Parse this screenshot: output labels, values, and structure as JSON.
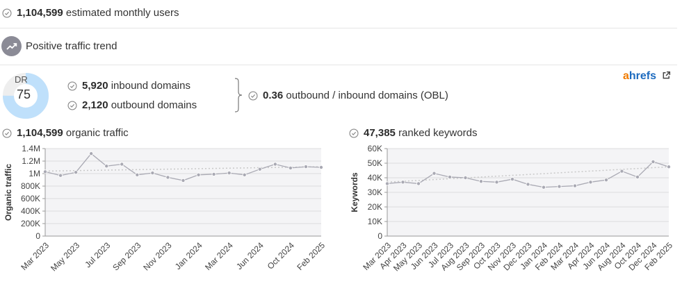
{
  "summary": {
    "monthly_users_value": "1,104,599",
    "monthly_users_label": "estimated monthly users",
    "trend_label": "Positive traffic trend",
    "dr_label": "DR",
    "dr_value": "75",
    "dr_fraction": 0.75,
    "inbound_value": "5,920",
    "inbound_label": "inbound domains",
    "outbound_value": "2,120",
    "outbound_label": "outbound domains",
    "obl_value": "0.36",
    "obl_label": "outbound / inbound domains (OBL)",
    "brand_a": "a",
    "brand_rest": "hrefs",
    "colors": {
      "accent_blue": "#bfe0fb",
      "check_gray": "#888888",
      "line": "#a9a9b3",
      "trend": "#d0d0d0",
      "ahrefs_orange": "#f07b00",
      "ahrefs_blue": "#1d6bbf"
    }
  },
  "traffic_header": {
    "value": "1,104,599",
    "label": "organic traffic"
  },
  "keywords_header": {
    "value": "47,385",
    "label": "ranked keywords"
  },
  "chart_data": [
    {
      "type": "line",
      "ylabel": "Organic traffic",
      "ylim": [
        0,
        1400000
      ],
      "yticks": [
        0,
        200000,
        400000,
        600000,
        800000,
        1000000,
        1200000,
        1400000
      ],
      "ytick_labels": [
        "0",
        "200K",
        "400K",
        "600K",
        "800K",
        "1M",
        "1.2M",
        "1.4M"
      ],
      "x_labels": [
        "Mar 2023",
        "May 2023",
        "Jul 2023",
        "Sep 2023",
        "Nov 2023",
        "Jan 2024",
        "Mar 2024",
        "Jun 2024",
        "Oct 2024",
        "Feb 2025"
      ],
      "values": [
        1030000,
        970000,
        1020000,
        1320000,
        1120000,
        1150000,
        980000,
        1010000,
        940000,
        890000,
        980000,
        990000,
        1010000,
        980000,
        1070000,
        1150000,
        1090000,
        1110000,
        1100000
      ],
      "trend": [
        1040000,
        1110000
      ],
      "grid": true
    },
    {
      "type": "line",
      "ylabel": "Keywords",
      "ylim": [
        0,
        60000
      ],
      "yticks": [
        0,
        10000,
        20000,
        30000,
        40000,
        50000,
        60000
      ],
      "ytick_labels": [
        "0",
        "10K",
        "20K",
        "30K",
        "40K",
        "50K",
        "60K"
      ],
      "x_labels": [
        "Mar 2023",
        "Apr 2023",
        "May 2023",
        "Jun 2023",
        "Jul 2023",
        "Aug 2023",
        "Sep 2023",
        "Oct 2023",
        "Nov 2023",
        "Dec 2023",
        "Jan 2024",
        "Feb 2024",
        "Mar 2024",
        "Apr 2024",
        "Jun 2024",
        "Aug 2024",
        "Oct 2024",
        "Dec 2024",
        "Feb 2025"
      ],
      "values": [
        36000,
        37000,
        36000,
        43000,
        40500,
        40000,
        37500,
        37000,
        39000,
        35500,
        33500,
        34000,
        34500,
        37000,
        38500,
        44500,
        40500,
        51000,
        47500
      ],
      "trend": [
        37000,
        47500
      ],
      "grid": true
    }
  ]
}
